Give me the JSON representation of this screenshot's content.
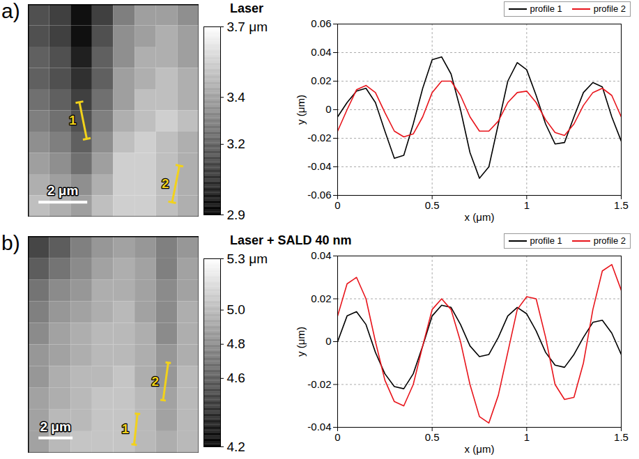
{
  "chart_data": [
    {
      "type": "heatmap",
      "panel": "a)",
      "width": 7,
      "height": 8.7,
      "cells": [
        [
          3.15,
          3.1,
          2.95,
          3.1,
          3.3,
          3.4,
          3.4,
          3.35
        ],
        [
          3.15,
          3.1,
          2.95,
          3.15,
          3.35,
          3.4,
          3.45,
          3.4
        ],
        [
          3.2,
          3.15,
          3.0,
          3.2,
          3.35,
          3.45,
          3.45,
          3.4
        ],
        [
          3.2,
          3.15,
          3.05,
          3.2,
          3.4,
          3.45,
          3.5,
          3.45
        ],
        [
          3.25,
          3.2,
          3.1,
          3.25,
          3.4,
          3.5,
          3.5,
          3.45
        ],
        [
          3.3,
          3.25,
          3.15,
          3.3,
          3.45,
          3.5,
          3.55,
          3.5
        ],
        [
          3.35,
          3.3,
          3.2,
          3.35,
          3.5,
          3.55,
          3.5,
          3.45
        ],
        [
          3.4,
          3.35,
          3.25,
          3.4,
          3.55,
          3.55,
          3.5,
          3.45
        ],
        [
          3.45,
          3.4,
          3.35,
          3.45,
          3.55,
          3.55,
          3.5,
          3.45
        ],
        [
          3.5,
          3.45,
          3.4,
          3.5,
          3.55,
          3.55,
          3.5,
          3.45
        ]
      ],
      "colorbar": {
        "range": [
          2.9,
          3.7
        ],
        "ticks": [
          {
            "value": 3.7,
            "label": "3.7 μm"
          },
          3.4,
          3.2,
          2.9
        ]
      },
      "scale_bar": {
        "length": 2,
        "label": "2 μm"
      },
      "color": "#f2d21b",
      "profiles": [
        {
          "name": "1",
          "start": [
            2.1,
            4.0
          ],
          "end": [
            2.4,
            5.5
          ]
        },
        {
          "name": "2",
          "start": [
            6.2,
            6.6
          ],
          "end": [
            5.9,
            8.1
          ]
        }
      ]
    },
    {
      "type": "line",
      "title": "Laser",
      "x_label": "x (μm)",
      "y_label": "y (μm)",
      "xlim": [
        0,
        1.5
      ],
      "xticks": [
        0,
        0.5,
        1,
        1.5
      ],
      "ylim": [
        -0.06,
        0.06
      ],
      "yticks": [
        -0.06,
        -0.04,
        -0.02,
        0,
        0.02,
        0.04,
        0.06
      ],
      "grid": true,
      "legend": "top",
      "x": [
        0,
        0.05,
        0.1,
        0.15,
        0.2,
        0.25,
        0.3,
        0.35,
        0.4,
        0.45,
        0.5,
        0.55,
        0.6,
        0.65,
        0.7,
        0.75,
        0.8,
        0.85,
        0.9,
        0.95,
        1,
        1.05,
        1.1,
        1.15,
        1.2,
        1.25,
        1.3,
        1.35,
        1.4,
        1.45,
        1.5
      ],
      "series": [
        {
          "name": "profile 1",
          "color": "#000000",
          "values": [
            -0.005,
            0.005,
            0.013,
            0.015,
            0.005,
            -0.015,
            -0.034,
            -0.032,
            -0.01,
            0.015,
            0.035,
            0.037,
            0.025,
            0,
            -0.03,
            -0.048,
            -0.04,
            -0.01,
            0.02,
            0.033,
            0.028,
            0.01,
            -0.01,
            -0.024,
            -0.023,
            -0.005,
            0.012,
            0.019,
            0.016,
            -0.005,
            -0.022
          ]
        },
        {
          "name": "profile 2",
          "color": "#e8141b",
          "values": [
            -0.015,
            0,
            0.014,
            0.017,
            0.012,
            -0.002,
            -0.015,
            -0.019,
            -0.017,
            -0.005,
            0.012,
            0.02,
            0.02,
            0.01,
            -0.005,
            -0.015,
            -0.015,
            -0.008,
            0.005,
            0.012,
            0.013,
            0.005,
            -0.007,
            -0.016,
            -0.018,
            -0.01,
            0.003,
            0.012,
            0.015,
            0.01,
            -0.005
          ]
        }
      ]
    },
    {
      "type": "heatmap",
      "panel": "b)",
      "width": 10,
      "height": 12.7,
      "cells": [
        [
          4.5,
          4.6,
          4.75,
          4.85,
          4.9,
          4.85,
          4.75,
          4.85
        ],
        [
          4.6,
          4.7,
          4.8,
          4.9,
          4.95,
          4.9,
          4.75,
          4.9
        ],
        [
          4.7,
          4.8,
          4.85,
          4.95,
          4.95,
          4.9,
          4.8,
          4.9
        ],
        [
          4.75,
          4.85,
          4.9,
          4.95,
          5.0,
          4.9,
          4.8,
          4.95
        ],
        [
          4.8,
          4.9,
          4.95,
          5.0,
          5.0,
          4.95,
          4.8,
          4.95
        ],
        [
          4.85,
          4.9,
          4.95,
          5.0,
          5.0,
          4.95,
          4.85,
          4.95
        ],
        [
          4.85,
          4.95,
          5.0,
          5.0,
          5.05,
          4.95,
          4.85,
          5.0
        ],
        [
          4.9,
          4.95,
          5.0,
          5.05,
          5.05,
          5.0,
          4.9,
          5.0
        ],
        [
          4.9,
          5.0,
          5.0,
          5.05,
          5.05,
          5.0,
          4.9,
          5.0
        ],
        [
          4.9,
          5.0,
          5.05,
          5.05,
          5.05,
          5.0,
          4.95,
          5.0
        ]
      ],
      "colorbar": {
        "range": [
          4.2,
          5.3
        ],
        "ticks": [
          {
            "value": 5.3,
            "label": "5.3 μm"
          },
          {
            "value": 5,
            "label": "5.0"
          },
          4.8,
          4.6,
          4.2
        ]
      },
      "scale_bar": {
        "length": 2,
        "label": "2 μm"
      },
      "color": "#f2d21b",
      "profiles": [
        {
          "name": "1",
          "start": [
            6.4,
            10.4
          ],
          "end": [
            6.2,
            12.2
          ]
        },
        {
          "name": "2",
          "start": [
            8.2,
            7.4
          ],
          "end": [
            7.9,
            9.6
          ]
        }
      ]
    },
    {
      "type": "line",
      "title": "Laser + SALD 40 nm",
      "x_label": "x (μm)",
      "y_label": "y (μm)",
      "xlim": [
        0,
        1.5
      ],
      "xticks": [
        0,
        0.5,
        1,
        1.5
      ],
      "ylim": [
        -0.04,
        0.04
      ],
      "yticks": [
        -0.04,
        -0.02,
        0,
        0.02,
        0.04
      ],
      "grid": true,
      "legend": "top",
      "x": [
        0,
        0.05,
        0.1,
        0.15,
        0.2,
        0.25,
        0.3,
        0.35,
        0.4,
        0.45,
        0.5,
        0.55,
        0.6,
        0.65,
        0.7,
        0.75,
        0.8,
        0.85,
        0.9,
        0.95,
        1,
        1.05,
        1.1,
        1.15,
        1.2,
        1.25,
        1.3,
        1.35,
        1.4,
        1.45,
        1.5
      ],
      "series": [
        {
          "name": "profile 1",
          "color": "#000000",
          "values": [
            0,
            0.012,
            0.014,
            0.008,
            -0.005,
            -0.015,
            -0.021,
            -0.022,
            -0.015,
            -0.002,
            0.012,
            0.017,
            0.016,
            0.008,
            -0.002,
            -0.007,
            -0.006,
            0.002,
            0.012,
            0.016,
            0.013,
            0.005,
            -0.005,
            -0.011,
            -0.012,
            -0.006,
            0.002,
            0.009,
            0.01,
            0.004,
            -0.006
          ]
        },
        {
          "name": "profile 2",
          "color": "#e8141b",
          "values": [
            0.012,
            0.027,
            0.03,
            0.02,
            0,
            -0.018,
            -0.028,
            -0.03,
            -0.02,
            -0.002,
            0.015,
            0.02,
            0.015,
            0,
            -0.02,
            -0.035,
            -0.038,
            -0.025,
            -0.005,
            0.015,
            0.021,
            0.02,
            0.002,
            -0.02,
            -0.027,
            -0.026,
            -0.01,
            0.015,
            0.033,
            0.036,
            0.024
          ]
        }
      ]
    }
  ]
}
